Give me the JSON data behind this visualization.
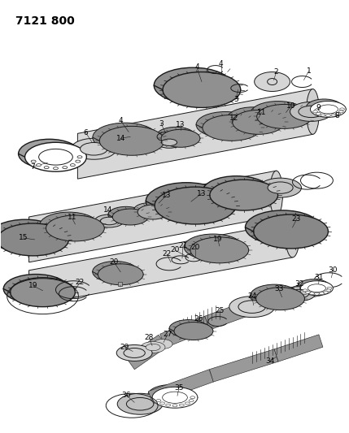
{
  "title": "7121 800",
  "bg_color": "#ffffff",
  "line_color": "#1a1a1a",
  "label_color": "#000000",
  "label_fontsize": 6.5,
  "fig_width": 4.29,
  "fig_height": 5.33,
  "dpi": 100,
  "gray_fill": "#c8c8c8",
  "dark_fill": "#888888",
  "med_fill": "#b0b0b0",
  "light_fill": "#e0e0e0"
}
